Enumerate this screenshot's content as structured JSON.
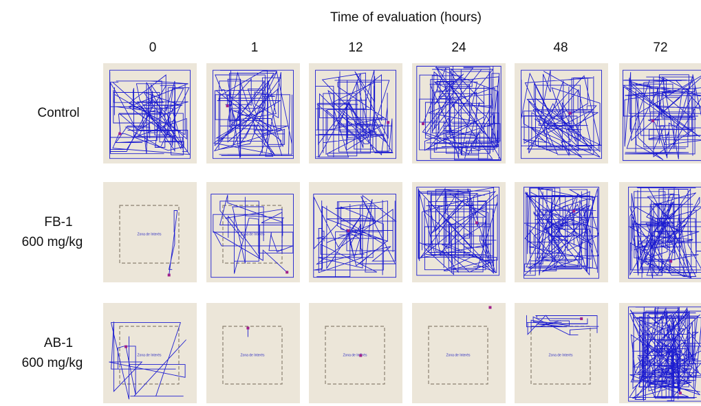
{
  "header": {
    "title": "Time of evaluation (hours)"
  },
  "columns": [
    "0",
    "1",
    "12",
    "24",
    "48",
    "72"
  ],
  "rows": [
    {
      "name": "Control"
    },
    {
      "name": "FB-1",
      "dose": "600 mg/kg"
    },
    {
      "name": "AB-1",
      "dose": "600 mg/kg"
    }
  ],
  "zone_label": "Zona de Interés"
}
